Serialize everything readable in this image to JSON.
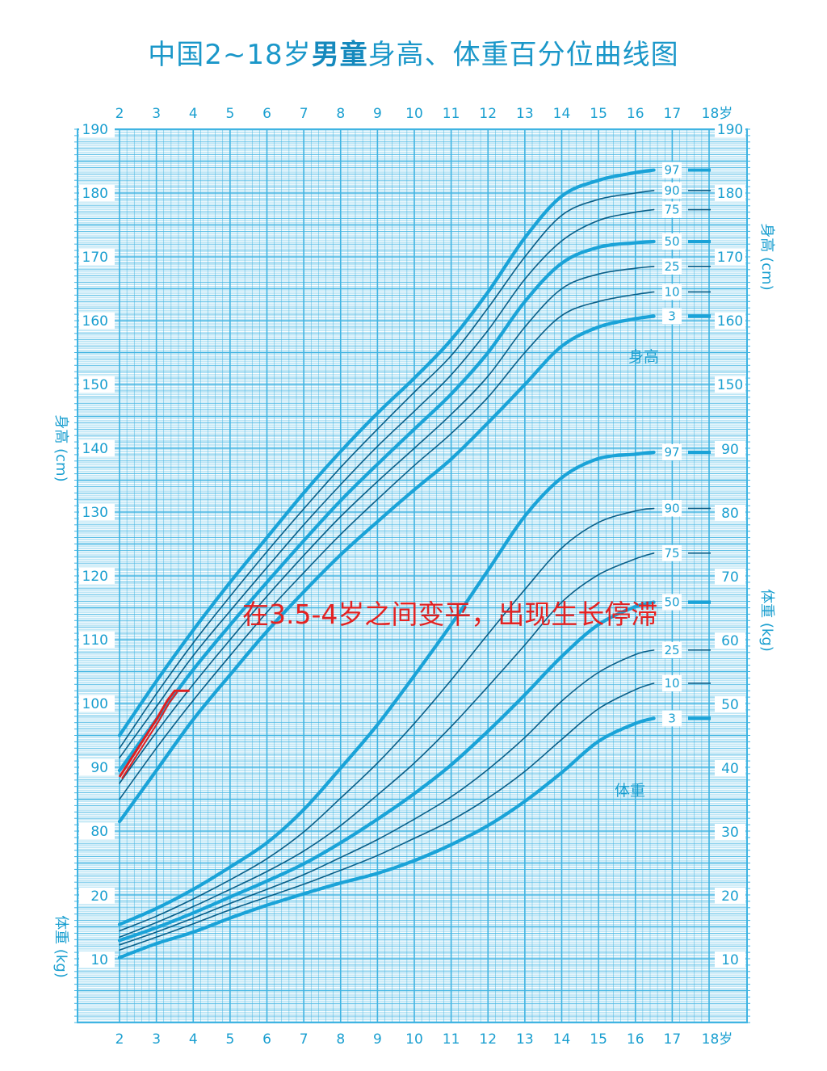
{
  "title": {
    "pre": "中国2~18岁",
    "emph": "男童",
    "post": "身高、体重百分位曲线图"
  },
  "colors": {
    "grid": "#40b4e2",
    "axis_text": "#1a9fd0",
    "curve": "#1aa3d8",
    "curve_thin": "#0a5f88",
    "annotation": "#e32222",
    "patient": "#e02020"
  },
  "chart_data": {
    "type": "line",
    "x_ticks": [
      "2",
      "3",
      "4",
      "5",
      "6",
      "7",
      "8",
      "9",
      "10",
      "11",
      "12",
      "13",
      "14",
      "15",
      "16",
      "17",
      "18岁"
    ],
    "xlim": [
      2,
      18
    ],
    "grid": true,
    "height": {
      "label": "身高",
      "unit_label": "身高 (cm)",
      "ylim": [
        80,
        190
      ],
      "y_ticks": [
        "190",
        "180",
        "170",
        "160",
        "150",
        "140",
        "130",
        "120",
        "110",
        "100",
        "90",
        "80"
      ],
      "x": [
        2,
        3,
        4,
        5,
        6,
        7,
        8,
        9,
        10,
        11,
        12,
        13,
        14,
        15,
        16,
        16.5
      ],
      "series": [
        {
          "name": "97",
          "values": [
            95.0,
            103.5,
            111.5,
            119.0,
            126.0,
            133.0,
            139.5,
            145.5,
            151.0,
            157.0,
            164.5,
            173.0,
            179.5,
            182.0,
            183.2,
            183.6
          ]
        },
        {
          "name": "90",
          "values": [
            93.0,
            101.5,
            109.5,
            116.8,
            123.8,
            130.5,
            137.0,
            143.0,
            148.8,
            154.5,
            162.0,
            170.0,
            176.5,
            179.0,
            180.0,
            180.4
          ]
        },
        {
          "name": "75",
          "values": [
            91.5,
            99.5,
            107.5,
            114.5,
            121.3,
            128.0,
            134.3,
            140.3,
            145.8,
            151.5,
            158.5,
            166.5,
            172.5,
            175.7,
            177.0,
            177.4
          ]
        },
        {
          "name": "50",
          "values": [
            89.5,
            97.5,
            105.3,
            112.3,
            119.0,
            125.5,
            131.8,
            137.5,
            143.0,
            148.5,
            155.0,
            163.0,
            169.0,
            171.5,
            172.2,
            172.4
          ]
        },
        {
          "name": "25",
          "values": [
            87.5,
            95.5,
            103.0,
            110.0,
            116.8,
            123.2,
            129.3,
            134.8,
            140.0,
            145.3,
            151.3,
            159.0,
            165.0,
            167.3,
            168.2,
            168.5
          ]
        },
        {
          "name": "10",
          "values": [
            85.0,
            93.0,
            100.5,
            107.5,
            114.3,
            120.5,
            126.5,
            132.0,
            137.3,
            142.3,
            148.0,
            155.0,
            160.8,
            163.0,
            164.1,
            164.5
          ]
        },
        {
          "name": "3",
          "values": [
            81.5,
            89.5,
            97.5,
            104.5,
            111.3,
            117.5,
            123.3,
            128.5,
            133.5,
            138.3,
            144.0,
            150.0,
            156.0,
            159.0,
            160.3,
            160.7
          ]
        }
      ]
    },
    "weight": {
      "label": "体重",
      "unit_label": "体重 (kg)",
      "ylim": [
        10,
        90
      ],
      "y_ticks_right": [
        "90",
        "80",
        "70",
        "60",
        "50",
        "40",
        "30",
        "20",
        "10"
      ],
      "y_ticks_left": [
        "20",
        "10"
      ],
      "x": [
        2,
        3,
        4,
        5,
        6,
        7,
        8,
        9,
        10,
        11,
        12,
        13,
        14,
        15,
        16,
        16.5
      ],
      "series": [
        {
          "name": "97",
          "values": [
            15.5,
            18.0,
            21.0,
            24.5,
            28.3,
            33.5,
            40.0,
            46.8,
            54.5,
            62.5,
            71.0,
            79.5,
            85.5,
            88.5,
            89.2,
            89.5
          ]
        },
        {
          "name": "90",
          "values": [
            14.5,
            16.8,
            19.5,
            22.5,
            25.8,
            30.0,
            35.3,
            40.8,
            47.0,
            53.8,
            61.0,
            68.0,
            74.5,
            78.5,
            80.3,
            80.7
          ]
        },
        {
          "name": "75",
          "values": [
            13.5,
            15.8,
            18.3,
            21.0,
            23.8,
            27.0,
            31.0,
            35.8,
            40.8,
            46.5,
            52.8,
            59.3,
            66.0,
            70.3,
            72.8,
            73.7
          ]
        },
        {
          "name": "50",
          "values": [
            13.0,
            15.0,
            17.3,
            19.8,
            22.3,
            25.0,
            28.3,
            32.0,
            36.0,
            40.5,
            45.8,
            51.5,
            57.5,
            62.5,
            65.3,
            66.0
          ]
        },
        {
          "name": "25",
          "values": [
            12.3,
            14.3,
            16.5,
            18.8,
            21.0,
            23.3,
            26.0,
            28.8,
            32.0,
            35.5,
            39.8,
            44.8,
            50.5,
            55.0,
            57.8,
            58.5
          ]
        },
        {
          "name": "10",
          "values": [
            11.5,
            13.5,
            15.6,
            17.8,
            19.8,
            21.8,
            24.0,
            26.3,
            29.0,
            31.8,
            35.3,
            39.5,
            44.5,
            49.3,
            52.3,
            53.3
          ]
        },
        {
          "name": "3",
          "values": [
            10.3,
            12.5,
            14.3,
            16.5,
            18.5,
            20.3,
            22.0,
            23.5,
            25.5,
            28.0,
            31.0,
            34.8,
            39.3,
            44.2,
            47.0,
            47.8
          ]
        }
      ]
    },
    "patient": {
      "x": [
        2.0,
        2.5,
        3.0,
        3.3,
        3.5,
        3.9
      ],
      "height": [
        88.5,
        93.0,
        97.5,
        100.5,
        102.0,
        102.0
      ]
    }
  },
  "annotation": "在3.5-4岁之间变平，出现生长停滞"
}
